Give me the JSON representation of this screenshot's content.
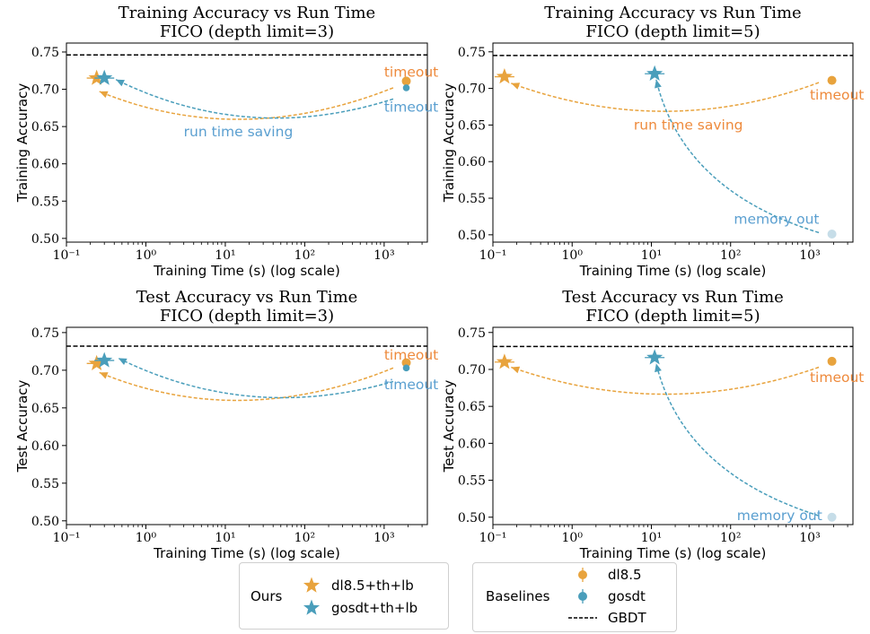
{
  "colors": {
    "orange": "#e8a33d",
    "blue": "#4a9ebb",
    "label_orange": "#ee8a3c",
    "label_blue": "#5a9fd0",
    "light_blue": "#c6dde8",
    "gbdt": "#000000"
  },
  "chart_data": [
    {
      "type": "scatter",
      "title": [
        "Training Accuracy vs Run Time",
        "FICO (depth limit=3)"
      ],
      "xlabel": "Training Time (s) (log scale)",
      "ylabel": "Training Accuracy",
      "xscale": "log",
      "xlim": [
        0.1,
        3500
      ],
      "ylim": [
        0.495,
        0.762
      ],
      "xticks": [
        {
          "v": 0.1,
          "label": "10⁻¹"
        },
        {
          "v": 1,
          "label": "10⁰"
        },
        {
          "v": 10,
          "label": "10¹"
        },
        {
          "v": 100,
          "label": "10²"
        },
        {
          "v": 1000,
          "label": "10³"
        }
      ],
      "yticks": [
        {
          "v": 0.5,
          "label": "0.50"
        },
        {
          "v": 0.55,
          "label": "0.55"
        },
        {
          "v": 0.6,
          "label": "0.60"
        },
        {
          "v": 0.65,
          "label": "0.65"
        },
        {
          "v": 0.7,
          "label": "0.70"
        },
        {
          "v": 0.75,
          "label": "0.75"
        }
      ],
      "gbdt": 0.746,
      "series": [
        {
          "name": "dl8.5+th+lb",
          "marker": "star",
          "color": "orange",
          "x": 0.24,
          "y": 0.715
        },
        {
          "name": "gosdt+th+lb",
          "marker": "star",
          "color": "blue",
          "x": 0.3,
          "y": 0.715
        },
        {
          "name": "dl8.5",
          "marker": "circle",
          "color": "orange",
          "x": 1900,
          "y": 0.711
        },
        {
          "name": "gosdt",
          "marker": "circle-small",
          "color": "blue",
          "x": 1900,
          "y": 0.702
        }
      ],
      "arrows": [
        {
          "color": "orange",
          "from": [
            1300,
            0.702
          ],
          "ctrl": [
            15,
            0.62
          ],
          "to": [
            0.26,
            0.697
          ]
        },
        {
          "color": "blue",
          "from": [
            1300,
            0.687
          ],
          "ctrl": [
            20,
            0.625
          ],
          "to": [
            0.42,
            0.713
          ]
        }
      ],
      "annotations": [
        {
          "text": "timeout",
          "color": "label_orange",
          "x": 1000,
          "y": 0.717
        },
        {
          "text": "timeout",
          "color": "label_blue",
          "x": 1000,
          "y": 0.67
        },
        {
          "text": "run time saving",
          "color": "label_blue",
          "x": 3,
          "y": 0.637
        }
      ]
    },
    {
      "type": "scatter",
      "title": [
        "Training Accuracy vs Run Time",
        "FICO (depth limit=5)"
      ],
      "xlabel": "Training Time (s) (log scale)",
      "ylabel": "Training Accuracy",
      "xscale": "log",
      "xlim": [
        0.1,
        3500
      ],
      "ylim": [
        0.49,
        0.762
      ],
      "xticks": [
        {
          "v": 0.1,
          "label": "10⁻¹"
        },
        {
          "v": 1,
          "label": "10⁰"
        },
        {
          "v": 10,
          "label": "10¹"
        },
        {
          "v": 100,
          "label": "10²"
        },
        {
          "v": 1000,
          "label": "10³"
        }
      ],
      "yticks": [
        {
          "v": 0.5,
          "label": "0.50"
        },
        {
          "v": 0.55,
          "label": "0.55"
        },
        {
          "v": 0.6,
          "label": "0.60"
        },
        {
          "v": 0.65,
          "label": "0.65"
        },
        {
          "v": 0.7,
          "label": "0.70"
        },
        {
          "v": 0.75,
          "label": "0.75"
        }
      ],
      "gbdt": 0.745,
      "series": [
        {
          "name": "dl8.5+th+lb",
          "marker": "star",
          "color": "orange",
          "x": 0.14,
          "y": 0.716
        },
        {
          "name": "gosdt+th+lb",
          "marker": "star",
          "color": "blue",
          "x": 11,
          "y": 0.72
        },
        {
          "name": "dl8.5",
          "marker": "circle",
          "color": "orange",
          "x": 1900,
          "y": 0.711
        },
        {
          "name": "gosdt",
          "marker": "circle-light",
          "color": "light_blue",
          "x": 1900,
          "y": 0.501
        }
      ],
      "arrows": [
        {
          "color": "orange",
          "from": [
            1300,
            0.708
          ],
          "ctrl": [
            15,
            0.63
          ],
          "to": [
            0.17,
            0.707
          ]
        },
        {
          "color": "blue",
          "from": [
            1300,
            0.503
          ],
          "ctrl": [
            25,
            0.56
          ],
          "to": [
            11.5,
            0.712
          ]
        }
      ],
      "annotations": [
        {
          "text": "timeout",
          "color": "label_orange",
          "x": 1000,
          "y": 0.685
        },
        {
          "text": "run time saving",
          "color": "label_orange",
          "x": 6,
          "y": 0.644
        },
        {
          "text": "memory out",
          "color": "label_blue",
          "x": 110,
          "y": 0.515
        }
      ]
    },
    {
      "type": "scatter",
      "title": [
        "Test Accuracy vs Run Time",
        "FICO (depth limit=3)"
      ],
      "xlabel": "Training Time (s) (log scale)",
      "ylabel": "Test Accuracy",
      "xscale": "log",
      "xlim": [
        0.1,
        3500
      ],
      "ylim": [
        0.495,
        0.757
      ],
      "xticks": [
        {
          "v": 0.1,
          "label": "10⁻¹"
        },
        {
          "v": 1,
          "label": "10⁰"
        },
        {
          "v": 10,
          "label": "10¹"
        },
        {
          "v": 100,
          "label": "10²"
        },
        {
          "v": 1000,
          "label": "10³"
        }
      ],
      "yticks": [
        {
          "v": 0.5,
          "label": "0.50"
        },
        {
          "v": 0.55,
          "label": "0.55"
        },
        {
          "v": 0.6,
          "label": "0.60"
        },
        {
          "v": 0.65,
          "label": "0.65"
        },
        {
          "v": 0.7,
          "label": "0.70"
        },
        {
          "v": 0.75,
          "label": "0.75"
        }
      ],
      "gbdt": 0.732,
      "series": [
        {
          "name": "dl8.5+th+lb",
          "marker": "star",
          "color": "orange",
          "x": 0.24,
          "y": 0.709
        },
        {
          "name": "gosdt+th+lb",
          "marker": "star",
          "color": "blue",
          "x": 0.3,
          "y": 0.713
        },
        {
          "name": "dl8.5",
          "marker": "circle",
          "color": "orange",
          "x": 1900,
          "y": 0.71
        },
        {
          "name": "gosdt",
          "marker": "circle-small",
          "color": "blue",
          "x": 1900,
          "y": 0.703
        }
      ],
      "arrows": [
        {
          "color": "orange",
          "from": [
            1300,
            0.703
          ],
          "ctrl": [
            15,
            0.62
          ],
          "to": [
            0.26,
            0.697
          ]
        },
        {
          "color": "blue",
          "from": [
            1300,
            0.685
          ],
          "ctrl": [
            20,
            0.63
          ],
          "to": [
            0.45,
            0.716
          ]
        }
      ],
      "annotations": [
        {
          "text": "timeout",
          "color": "label_orange",
          "x": 1000,
          "y": 0.714
        },
        {
          "text": "timeout",
          "color": "label_blue",
          "x": 1000,
          "y": 0.675
        }
      ]
    },
    {
      "type": "scatter",
      "title": [
        "Test Accuracy vs Run Time",
        "FICO (depth limit=5)"
      ],
      "xlabel": "Training Time (s) (log scale)",
      "ylabel": "Test Accuracy",
      "xscale": "log",
      "xlim": [
        0.1,
        3500
      ],
      "ylim": [
        0.49,
        0.757
      ],
      "xticks": [
        {
          "v": 0.1,
          "label": "10⁻¹"
        },
        {
          "v": 1,
          "label": "10⁰"
        },
        {
          "v": 10,
          "label": "10¹"
        },
        {
          "v": 100,
          "label": "10²"
        },
        {
          "v": 1000,
          "label": "10³"
        }
      ],
      "yticks": [
        {
          "v": 0.5,
          "label": "0.50"
        },
        {
          "v": 0.55,
          "label": "0.55"
        },
        {
          "v": 0.6,
          "label": "0.60"
        },
        {
          "v": 0.65,
          "label": "0.65"
        },
        {
          "v": 0.7,
          "label": "0.70"
        },
        {
          "v": 0.75,
          "label": "0.75"
        }
      ],
      "gbdt": 0.731,
      "series": [
        {
          "name": "dl8.5+th+lb",
          "marker": "star",
          "color": "orange",
          "x": 0.14,
          "y": 0.71
        },
        {
          "name": "gosdt+th+lb",
          "marker": "star",
          "color": "blue",
          "x": 11,
          "y": 0.716
        },
        {
          "name": "dl8.5",
          "marker": "circle",
          "color": "orange",
          "x": 1900,
          "y": 0.711
        },
        {
          "name": "gosdt",
          "marker": "circle-light",
          "color": "light_blue",
          "x": 1900,
          "y": 0.5
        }
      ],
      "arrows": [
        {
          "color": "orange",
          "from": [
            1300,
            0.703
          ],
          "ctrl": [
            15,
            0.63
          ],
          "to": [
            0.17,
            0.703
          ]
        },
        {
          "color": "blue",
          "from": [
            1300,
            0.502
          ],
          "ctrl": [
            25,
            0.56
          ],
          "to": [
            11.5,
            0.708
          ]
        }
      ],
      "annotations": [
        {
          "text": "timeout",
          "color": "label_orange",
          "x": 1000,
          "y": 0.683
        },
        {
          "text": "memory out",
          "color": "label_blue",
          "x": 120,
          "y": 0.496
        }
      ]
    }
  ],
  "legend_ours": {
    "title": "Ours",
    "items": [
      {
        "label": "dl8.5+th+lb",
        "color": "orange"
      },
      {
        "label": "gosdt+th+lb",
        "color": "blue"
      }
    ]
  },
  "legend_baselines": {
    "title": "Baselines",
    "items": [
      {
        "label": "dl8.5",
        "color": "orange",
        "kind": "errorbar-marker"
      },
      {
        "label": "gosdt",
        "color": "blue",
        "kind": "errorbar-marker"
      },
      {
        "label": "GBDT",
        "color": "gbdt",
        "kind": "dashed-line"
      }
    ]
  }
}
